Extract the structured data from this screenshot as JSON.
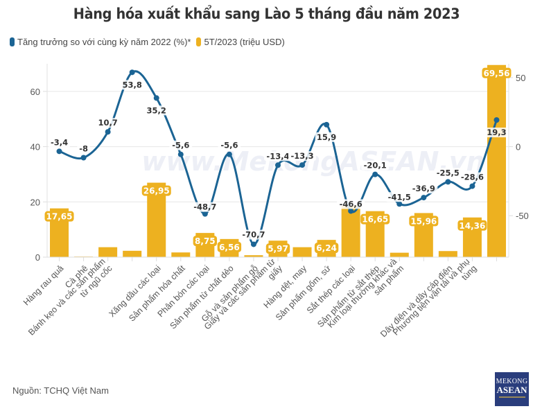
{
  "chart_data": {
    "type": "bar+line",
    "title": "Hàng hóa xuất khẩu sang Lào 5 tháng đầu năm 2023",
    "categories": [
      "Hàng rau quả",
      "Cà phê",
      "Bánh kẹo và các sản phẩm từ ngũ cốc",
      "",
      "Xăng dầu các loại",
      "Sản phẩm hóa chất",
      "Phân bón các loại",
      "Sản phẩm từ chất dẻo",
      "Gỗ và sản phẩm gỗ",
      "Giấy và các sản phẩm từ giấy",
      "Hàng dệt, may",
      "Sản phẩm gốm, sứ",
      "Sắt thép các loại",
      "Sản phẩm từ sắt thép",
      "Kim loại thường khác và sản phẩm",
      "",
      "Dây điện và dây cáp điện",
      "Phương tiện vận tải và phụ tùng",
      ""
    ],
    "series": [
      {
        "name": "5T/2023 (triệu USD)",
        "type": "bar",
        "axis": "left",
        "color": "#EDB120",
        "values": [
          17.65,
          0.1,
          3.6,
          2.3,
          26.95,
          1.7,
          8.75,
          6.56,
          0.7,
          5.97,
          3.6,
          6.24,
          18.6,
          16.65,
          1.6,
          15.96,
          2.2,
          14.36,
          69.56
        ],
        "labels": [
          "17,65",
          "",
          "",
          "",
          "26,95",
          "",
          "8,75",
          "6,56",
          "",
          "5,97",
          "",
          "6,24",
          "",
          "16,65",
          "",
          "15,96",
          "",
          "14,36",
          "69,56"
        ]
      },
      {
        "name": "Tăng trưởng so với cùng kỳ năm 2022 (%)*",
        "type": "line",
        "axis": "right",
        "color": "#1B6494",
        "values": [
          -3.4,
          -8,
          10.7,
          53.8,
          35.2,
          -5.6,
          -48.7,
          -5.6,
          -70.7,
          -13.4,
          -13.3,
          15.9,
          -46.6,
          -20.1,
          -41.5,
          -36.9,
          -25.5,
          -28.6,
          19.3
        ],
        "labels": [
          "-3,4",
          "-8",
          "10,7",
          "53,8",
          "35,2",
          "-5,6",
          "-48,7",
          "-5,6",
          "-70,7",
          "-13,4",
          "-13,3",
          "15,9",
          "-46,6",
          "-20,1",
          "-41,5",
          "-36,9",
          "-25,5",
          "-28,6",
          "19,3"
        ]
      }
    ],
    "y_left": {
      "ticks": [
        0,
        20,
        40,
        60
      ],
      "ylim": [
        0,
        70
      ]
    },
    "y_right": {
      "ticks": [
        -50,
        0,
        50
      ],
      "ylim": [
        -80,
        60
      ]
    },
    "xlabel": "",
    "ylabel": "",
    "grid": true,
    "legend_position": "top-left"
  },
  "legend": {
    "line_label": "Tăng trưởng so với cùng kỳ năm 2022 (%)*",
    "bar_label": "5T/2023 (triệu USD)",
    "line_color": "#1B6494",
    "bar_color": "#EDB120"
  },
  "watermark": "www.MekongASEAN.vn",
  "source": "Nguồn: TCHQ Việt Nam",
  "logo": {
    "line1": "MEKONG",
    "line2": "ASEAN"
  }
}
